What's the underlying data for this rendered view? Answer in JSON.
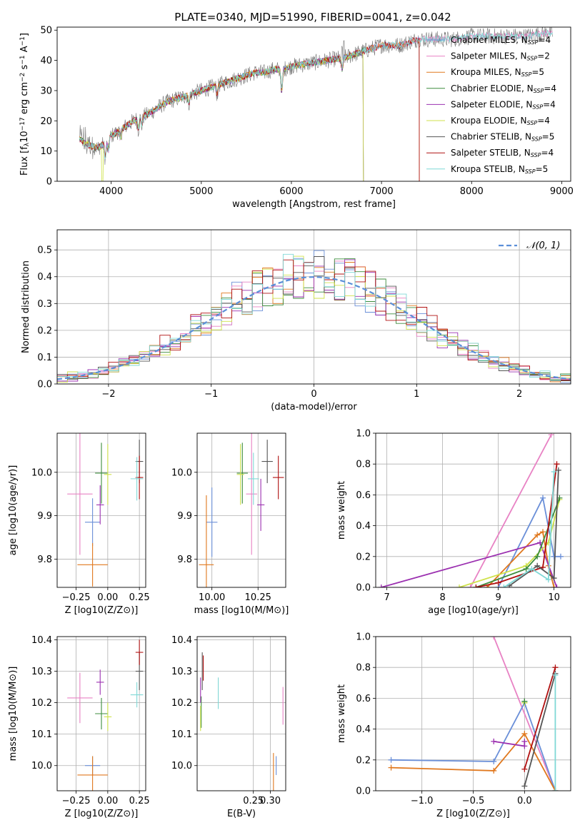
{
  "title": "PLATE=0340, MJD=51990, FIBERID=0041, z=0.042",
  "colors": {
    "chabrier_miles": "#6a8fd8",
    "salpeter_miles": "#e882c4",
    "kroupa_miles": "#e0781e",
    "chabrier_elodie": "#3c8c3c",
    "salpeter_elodie": "#9b30b0",
    "kroupa_elodie": "#cfe24b",
    "chabrier_stelib": "#555555",
    "salpeter_stelib": "#b01010",
    "kroupa_stelib": "#7fd8d6",
    "grid": "#b0b0b0",
    "normal_curve": "#5b8fd8"
  },
  "chart_data": [
    {
      "type": "line",
      "name": "spectrum",
      "xlabel": "wavelength [Angstrom, rest frame]",
      "ylabel": "Flux [f_λ10^-17 erg cm^-2 s^-1 A^-1]",
      "xlim": [
        3400,
        9100
      ],
      "ylim": [
        0,
        51
      ],
      "xticks": [
        4000,
        5000,
        6000,
        7000,
        8000,
        9000
      ],
      "yticks": [
        0,
        10,
        20,
        30,
        40,
        50
      ],
      "legend_position": "upper right",
      "legend": [
        {
          "label": "Chabrier MILES, N",
          "sub": "SSP",
          "suffix": "=4",
          "color_key": "chabrier_miles"
        },
        {
          "label": "Salpeter MILES, N",
          "sub": "SSP",
          "suffix": "=2",
          "color_key": "salpeter_miles"
        },
        {
          "label": "Kroupa MILES, N",
          "sub": "SSP",
          "suffix": "=5",
          "color_key": "kroupa_miles"
        },
        {
          "label": "Chabrier ELODIE, N",
          "sub": "SSP",
          "suffix": "=4",
          "color_key": "chabrier_elodie"
        },
        {
          "label": "Salpeter ELODIE, N",
          "sub": "SSP",
          "suffix": "=4",
          "color_key": "salpeter_elodie"
        },
        {
          "label": "Kroupa ELODIE, N",
          "sub": "SSP",
          "suffix": "=4",
          "color_key": "kroupa_elodie"
        },
        {
          "label": "Chabrier STELIB, N",
          "sub": "SSP",
          "suffix": "=5",
          "color_key": "chabrier_stelib"
        },
        {
          "label": "Salpeter STELIB, N",
          "sub": "SSP",
          "suffix": "=4",
          "color_key": "salpeter_stelib"
        },
        {
          "label": "Kroupa STELIB, N",
          "sub": "SSP",
          "suffix": "=5",
          "color_key": "kroupa_stelib"
        }
      ],
      "continuum": [
        [
          3650,
          14
        ],
        [
          3750,
          12
        ],
        [
          3850,
          11
        ],
        [
          3950,
          13
        ],
        [
          4000,
          15
        ],
        [
          4100,
          17
        ],
        [
          4200,
          19
        ],
        [
          4300,
          21
        ],
        [
          4400,
          22
        ],
        [
          4500,
          24
        ],
        [
          4600,
          26
        ],
        [
          4700,
          27
        ],
        [
          4800,
          28
        ],
        [
          4900,
          29
        ],
        [
          5000,
          30
        ],
        [
          5100,
          31
        ],
        [
          5200,
          32
        ],
        [
          5300,
          33
        ],
        [
          5400,
          34
        ],
        [
          5500,
          35
        ],
        [
          5600,
          36
        ],
        [
          5700,
          36
        ],
        [
          5800,
          37
        ],
        [
          5900,
          37
        ],
        [
          6000,
          38
        ],
        [
          6200,
          39
        ],
        [
          6400,
          40
        ],
        [
          6600,
          41
        ],
        [
          6800,
          43
        ],
        [
          7000,
          45
        ],
        [
          7200,
          45
        ],
        [
          7400,
          47
        ],
        [
          7600,
          47
        ],
        [
          7800,
          47
        ],
        [
          8000,
          48
        ],
        [
          8200,
          48
        ],
        [
          8400,
          48
        ],
        [
          8600,
          48
        ],
        [
          8800,
          49
        ]
      ],
      "model_end_wavelength": {
        "stelib": 7420,
        "elodie": 6800,
        "miles": 7420
      },
      "drop_wavelengths": {
        "kroupa_elodie_low": 3900,
        "elodie_edge": 6800,
        "stelib_edge": 7420
      }
    },
    {
      "type": "area",
      "name": "residual-histograms",
      "xlabel": "(data-model)/error",
      "ylabel": "Normed distribution",
      "xlim": [
        -2.5,
        2.5
      ],
      "ylim": [
        0,
        0.575
      ],
      "xticks": [
        -2,
        -1,
        0,
        1,
        2
      ],
      "yticks": [
        0.0,
        0.1,
        0.2,
        0.3,
        0.4,
        0.5
      ],
      "legend_label": "𝒩(0, 1)",
      "legend_position": "upper right",
      "normal": {
        "mean": 0,
        "sigma": 1
      },
      "bin_width": 0.1,
      "bin_start": -2.5
    },
    {
      "type": "scatter",
      "name": "age-vs-Z",
      "xlabel": "Z [log10(Z/Z⊙)]",
      "ylabel": "age [log10(age/yr)]",
      "xlim": [
        -0.4,
        0.3
      ],
      "ylim": [
        9.735,
        10.09
      ],
      "xticks": [
        -0.25,
        0.0,
        0.25
      ],
      "yticks": [
        9.8,
        9.9,
        10.0
      ],
      "points": [
        {
          "key": "chabrier_miles",
          "x": -0.12,
          "y": 9.885,
          "xerr": 0.06,
          "yerr": 0.055
        },
        {
          "key": "salpeter_miles",
          "x": -0.22,
          "y": 9.95,
          "xerr": 0.1,
          "yerr": 0.14
        },
        {
          "key": "kroupa_miles",
          "x": -0.12,
          "y": 9.787,
          "xerr": 0.12,
          "yerr": 0.05
        },
        {
          "key": "chabrier_elodie",
          "x": -0.05,
          "y": 9.998,
          "xerr": 0.05,
          "yerr": 0.07
        },
        {
          "key": "salpeter_elodie",
          "x": -0.06,
          "y": 9.925,
          "xerr": 0.03,
          "yerr": 0.045
        },
        {
          "key": "kroupa_elodie",
          "x": 0.0,
          "y": 9.995,
          "xerr": 0.03,
          "yerr": 0.07
        },
        {
          "key": "chabrier_stelib",
          "x": 0.25,
          "y": 10.025,
          "xerr": 0.03,
          "yerr": 0.05
        },
        {
          "key": "salpeter_stelib",
          "x": 0.25,
          "y": 9.988,
          "xerr": 0.03,
          "yerr": 0.05
        },
        {
          "key": "kroupa_stelib",
          "x": 0.23,
          "y": 9.985,
          "xerr": 0.05,
          "yerr": 0.05
        }
      ]
    },
    {
      "type": "scatter",
      "name": "age-vs-mass",
      "xlabel": "mass [log10(M/M⊙)]",
      "ylabel": "",
      "xlim": [
        9.92,
        10.4
      ],
      "ylim": [
        9.735,
        10.09
      ],
      "xticks": [
        10.0,
        10.25
      ],
      "yticks": [
        9.8,
        9.9,
        10.0
      ],
      "points": [
        {
          "key": "chabrier_miles",
          "x": 10.0,
          "y": 9.885,
          "xerr": 0.03,
          "yerr": 0.08
        },
        {
          "key": "salpeter_miles",
          "x": 10.215,
          "y": 9.95,
          "xerr": 0.03,
          "yerr": 0.14
        },
        {
          "key": "kroupa_miles",
          "x": 9.97,
          "y": 9.787,
          "xerr": 0.04,
          "yerr": 0.16
        },
        {
          "key": "chabrier_elodie",
          "x": 10.165,
          "y": 9.998,
          "xerr": 0.03,
          "yerr": 0.07
        },
        {
          "key": "salpeter_elodie",
          "x": 10.265,
          "y": 9.925,
          "xerr": 0.02,
          "yerr": 0.06
        },
        {
          "key": "kroupa_elodie",
          "x": 10.155,
          "y": 9.995,
          "xerr": 0.02,
          "yerr": 0.07
        },
        {
          "key": "chabrier_stelib",
          "x": 10.3,
          "y": 10.025,
          "xerr": 0.03,
          "yerr": 0.05
        },
        {
          "key": "salpeter_stelib",
          "x": 10.36,
          "y": 9.988,
          "xerr": 0.03,
          "yerr": 0.05
        },
        {
          "key": "kroupa_stelib",
          "x": 10.225,
          "y": 9.985,
          "xerr": 0.03,
          "yerr": 0.06
        }
      ]
    },
    {
      "type": "line",
      "name": "mass-weight-vs-age",
      "xlabel": "age [log10(age/yr)]",
      "ylabel": "mass weight",
      "xlim": [
        6.8,
        10.3
      ],
      "ylim": [
        0,
        1.0
      ],
      "xticks": [
        7,
        8,
        9,
        10
      ],
      "yticks": [
        0.0,
        0.2,
        0.4,
        0.6,
        0.8,
        1.0
      ],
      "series": [
        {
          "key": "salpeter_miles",
          "x": [
            8.5,
            9.95
          ],
          "y": [
            0.0,
            0.99
          ]
        },
        {
          "key": "chabrier_miles",
          "x": [
            9.0,
            9.8,
            10.0,
            10.12
          ],
          "y": [
            0.0,
            0.58,
            0.2,
            0.2
          ]
        },
        {
          "key": "kroupa_miles",
          "x": [
            8.8,
            9.7,
            9.8,
            9.9,
            10.0
          ],
          "y": [
            0.0,
            0.34,
            0.36,
            0.14,
            0.0
          ]
        },
        {
          "key": "salpeter_elodie",
          "x": [
            6.9,
            9.75,
            10.05
          ],
          "y": [
            0.0,
            0.29,
            0.0
          ]
        },
        {
          "key": "kroupa_elodie",
          "x": [
            8.3,
            9.5,
            9.9,
            10.1
          ],
          "y": [
            0.0,
            0.14,
            0.29,
            0.57
          ]
        },
        {
          "key": "chabrier_elodie",
          "x": [
            8.6,
            9.5,
            9.7,
            10.1
          ],
          "y": [
            0.0,
            0.12,
            0.2,
            0.58
          ]
        },
        {
          "key": "salpeter_stelib",
          "x": [
            8.6,
            9.0,
            9.8,
            10.05
          ],
          "y": [
            0.0,
            0.03,
            0.13,
            0.8
          ]
        },
        {
          "key": "chabrier_stelib",
          "x": [
            9.2,
            9.7,
            10.0,
            10.08
          ],
          "y": [
            0.01,
            0.14,
            0.06,
            0.76
          ]
        },
        {
          "key": "kroupa_stelib",
          "x": [
            9.1,
            9.6,
            9.9,
            10.0
          ],
          "y": [
            0.0,
            0.12,
            0.05,
            0.75
          ]
        }
      ]
    },
    {
      "type": "scatter",
      "name": "mass-vs-Z",
      "xlabel": "Z [log10(Z/Z⊙)]",
      "ylabel": "mass [log10(M/M⊙)]",
      "xlim": [
        -0.4,
        0.3
      ],
      "ylim": [
        9.92,
        10.41
      ],
      "xticks": [
        -0.25,
        0.0,
        0.25
      ],
      "yticks": [
        10.0,
        10.1,
        10.2,
        10.3,
        10.4
      ],
      "points": [
        {
          "key": "chabrier_miles",
          "x": -0.12,
          "y": 10.0,
          "xerr": 0.06,
          "yerr": 0.03
        },
        {
          "key": "salpeter_miles",
          "x": -0.22,
          "y": 10.215,
          "xerr": 0.1,
          "yerr": 0.08
        },
        {
          "key": "kroupa_miles",
          "x": -0.12,
          "y": 9.97,
          "xerr": 0.12,
          "yerr": 0.06
        },
        {
          "key": "chabrier_elodie",
          "x": -0.05,
          "y": 10.165,
          "xerr": 0.05,
          "yerr": 0.05
        },
        {
          "key": "salpeter_elodie",
          "x": -0.06,
          "y": 10.265,
          "xerr": 0.03,
          "yerr": 0.04
        },
        {
          "key": "kroupa_elodie",
          "x": 0.0,
          "y": 10.155,
          "xerr": 0.03,
          "yerr": 0.045
        },
        {
          "key": "chabrier_stelib",
          "x": 0.25,
          "y": 10.3,
          "xerr": 0.03,
          "yerr": 0.06
        },
        {
          "key": "salpeter_stelib",
          "x": 0.25,
          "y": 10.36,
          "xerr": 0.03,
          "yerr": 0.04
        },
        {
          "key": "kroupa_stelib",
          "x": 0.23,
          "y": 10.225,
          "xerr": 0.05,
          "yerr": 0.04
        }
      ]
    },
    {
      "type": "scatter",
      "name": "mass-vs-ebv",
      "xlabel": "E(B-V)",
      "ylabel": "",
      "xlim": [
        0.085,
        0.345
      ],
      "ylim": [
        9.92,
        10.41
      ],
      "xticks": [
        0.25,
        0.3
      ],
      "yticks": [
        10.0,
        10.1,
        10.2,
        10.3,
        10.4
      ],
      "points": [
        {
          "key": "chabrier_miles",
          "x": 0.317,
          "y": 10.0,
          "xerr": 0,
          "yerr": 0.03
        },
        {
          "key": "salpeter_miles",
          "x": 0.337,
          "y": 10.19,
          "xerr": 0,
          "yerr": 0.06
        },
        {
          "key": "kroupa_miles",
          "x": 0.309,
          "y": 9.98,
          "xerr": 0,
          "yerr": 0.06
        },
        {
          "key": "chabrier_elodie",
          "x": 0.097,
          "y": 10.17,
          "xerr": 0,
          "yerr": 0.05
        },
        {
          "key": "salpeter_elodie",
          "x": 0.095,
          "y": 10.24,
          "xerr": 0,
          "yerr": 0.04
        },
        {
          "key": "kroupa_elodie",
          "x": 0.095,
          "y": 10.15,
          "xerr": 0,
          "yerr": 0.04
        },
        {
          "key": "chabrier_stelib",
          "x": 0.1,
          "y": 10.3,
          "xerr": 0,
          "yerr": 0.06
        },
        {
          "key": "salpeter_stelib",
          "x": 0.103,
          "y": 10.31,
          "xerr": 0,
          "yerr": 0.04
        },
        {
          "key": "kroupa_stelib",
          "x": 0.147,
          "y": 10.23,
          "xerr": 0,
          "yerr": 0.05
        }
      ]
    },
    {
      "type": "line",
      "name": "mass-weight-vs-Z",
      "xlabel": "Z [log10(Z/Z⊙)]",
      "ylabel": "mass weight",
      "xlim": [
        -1.45,
        0.45
      ],
      "ylim": [
        0,
        1.0
      ],
      "xticks": [
        -1.0,
        -0.5,
        0.0
      ],
      "yticks": [
        0.0,
        0.2,
        0.4,
        0.6,
        0.8,
        1.0
      ],
      "series": [
        {
          "key": "salpeter_miles",
          "x": [
            -0.3,
            0.3
          ],
          "y": [
            1.0,
            0.0
          ]
        },
        {
          "key": "chabrier_miles",
          "x": [
            -1.3,
            -0.3,
            0.0,
            0.3
          ],
          "y": [
            0.2,
            0.19,
            0.57,
            0.0
          ]
        },
        {
          "key": "kroupa_miles",
          "x": [
            -1.3,
            -0.3,
            0.0,
            0.3
          ],
          "y": [
            0.15,
            0.13,
            0.37,
            0.0
          ]
        },
        {
          "key": "salpeter_elodie",
          "x": [
            -0.3,
            0.0,
            0.0
          ],
          "y": [
            0.32,
            0.29,
            0.32
          ]
        },
        {
          "key": "kroupa_elodie",
          "x": [
            0.0,
            0.0
          ],
          "y": [
            0.57,
            0.57
          ]
        },
        {
          "key": "chabrier_elodie",
          "x": [
            0.0,
            0.0
          ],
          "y": [
            0.58,
            0.58
          ]
        },
        {
          "key": "salpeter_stelib",
          "x": [
            0.0,
            0.3
          ],
          "y": [
            0.14,
            0.8
          ]
        },
        {
          "key": "chabrier_stelib",
          "x": [
            0.0,
            0.3
          ],
          "y": [
            0.03,
            0.76
          ]
        },
        {
          "key": "kroupa_stelib",
          "x": [
            0.3,
            0.3
          ],
          "y": [
            0.0,
            0.75
          ]
        }
      ]
    }
  ]
}
